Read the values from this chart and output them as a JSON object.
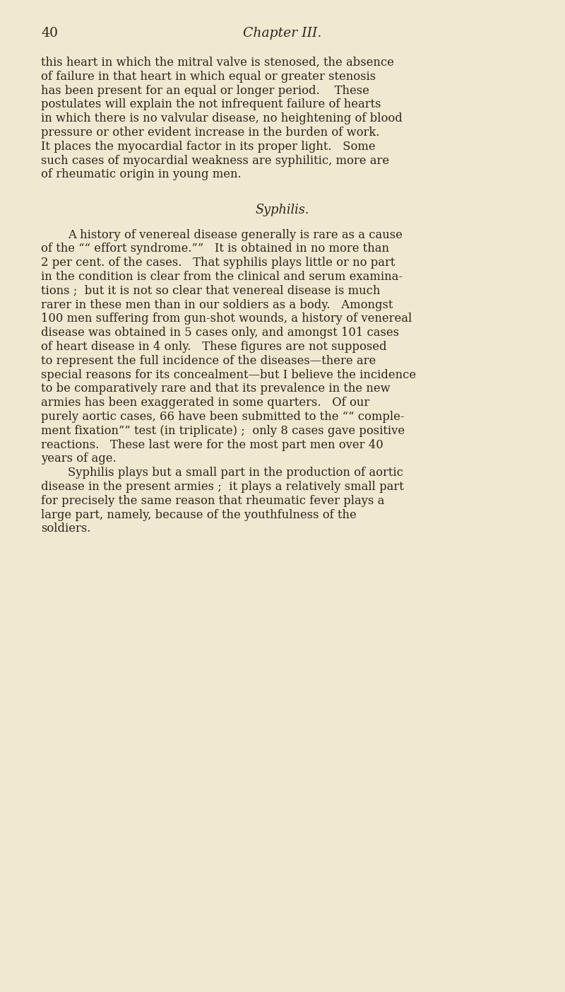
{
  "background_color": "#f0e8d0",
  "text_color": "#2c2416",
  "page_number": "40",
  "chapter_title": "Chapter III.",
  "body_font_size": 11.8,
  "header_font_size": 13.5,
  "section_title": "Syphilis.",
  "paragraph1": [
    "this heart in which the mitral valve is stenosed, the absence",
    "of failure in that heart in which equal or greater stenosis",
    "has been present for an equal or longer period.    These",
    "postulates will explain the not infrequent failure of hearts",
    "in which there is no valvular disease, no heightening of blood",
    "pressure or other evident increase in the burden of work.",
    "It places the myocardial factor in its proper light.   Some",
    "such cases of myocardial weakness are syphilitic, more are",
    "of rheumatic origin in young men."
  ],
  "paragraph2_indent": "    A history of venereal disease generally is rare as a cause",
  "paragraph2": [
    "of the ““ effort syndrome.””   It is obtained in no more than",
    "2 per cent. of the cases.   That syphilis plays little or no part",
    "in the condition is clear from the clinical and serum examina-",
    "tions ;  but it is not so clear that venereal disease is much",
    "rarer in these men than in our soldiers as a body.   Amongst",
    "100 men suffering from gun-shot wounds, a history of venereal",
    "disease was obtained in 5 cases only, and amongst 101 cases",
    "of heart disease in 4 only.   These figures are not supposed",
    "to represent the full incidence of the diseases—there are",
    "special reasons for its concealment—but I believe the incidence",
    "to be comparatively rare and that its prevalence in the new",
    "armies has been exaggerated in some quarters.   Of our",
    "purely aortic cases, 66 have been submitted to the ““ comple-",
    "ment fixation”” test (in triplicate) ;  only 8 cases gave positive",
    "reactions.   These last were for the most part men over 40",
    "years of age."
  ],
  "paragraph3_indent": "    Syphilis plays but a small part in the production of aortic",
  "paragraph3": [
    "disease in the present armies ;  it plays a relatively small part",
    "for precisely the same reason that rheumatic fever plays a",
    "large part, namely, because of the youthfulness of the",
    "soldiers."
  ]
}
